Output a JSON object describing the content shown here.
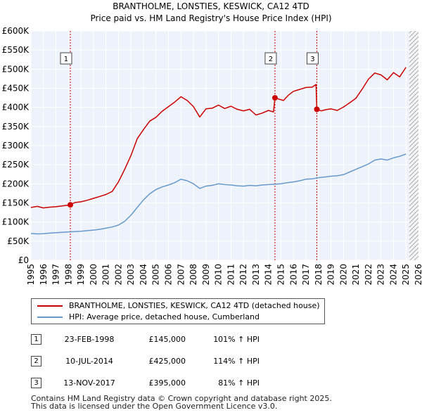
{
  "chart_data": {
    "type": "line",
    "title": "BRANTHOLME, LONSTIES, KESWICK, CA12 4TD",
    "subtitle": "Price paid vs. HM Land Registry's House Price Index (HPI)",
    "xlabel": "",
    "ylabel": "",
    "xlim": [
      1995,
      2026
    ],
    "ylim": [
      0,
      600000
    ],
    "x_ticks": [
      "1995",
      "1996",
      "1997",
      "1998",
      "1999",
      "2000",
      "2001",
      "2002",
      "2003",
      "2004",
      "2005",
      "2006",
      "2007",
      "2008",
      "2009",
      "2010",
      "2011",
      "2012",
      "2013",
      "2014",
      "2015",
      "2016",
      "2017",
      "2018",
      "2019",
      "2020",
      "2021",
      "2022",
      "2023",
      "2024",
      "2025",
      "2026"
    ],
    "y_ticks": [
      {
        "value": 0,
        "label": "£0"
      },
      {
        "value": 50000,
        "label": "£50K"
      },
      {
        "value": 100000,
        "label": "£100K"
      },
      {
        "value": 150000,
        "label": "£150K"
      },
      {
        "value": 200000,
        "label": "£200K"
      },
      {
        "value": 250000,
        "label": "£250K"
      },
      {
        "value": 300000,
        "label": "£300K"
      },
      {
        "value": 350000,
        "label": "£350K"
      },
      {
        "value": 400000,
        "label": "£400K"
      },
      {
        "value": 450000,
        "label": "£450K"
      },
      {
        "value": 500000,
        "label": "£500K"
      },
      {
        "value": 550000,
        "label": "£550K"
      },
      {
        "value": 600000,
        "label": "£600K"
      }
    ],
    "series": [
      {
        "name": "BRANTHOLME, LONSTIES, KESWICK, CA12 4TD (detached house)",
        "color": "#cc0000",
        "x": [
          1995.0,
          1995.5,
          1996.0,
          1996.5,
          1997.0,
          1997.5,
          1998.15,
          1998.5,
          1999.0,
          1999.5,
          2000.0,
          2000.5,
          2001.0,
          2001.5,
          2002.0,
          2002.5,
          2003.0,
          2003.5,
          2004.0,
          2004.5,
          2005.0,
          2005.5,
          2006.0,
          2006.5,
          2007.0,
          2007.5,
          2008.0,
          2008.5,
          2009.0,
          2009.5,
          2010.0,
          2010.5,
          2011.0,
          2011.5,
          2012.0,
          2012.5,
          2013.0,
          2013.5,
          2014.0,
          2014.4,
          2014.52,
          2014.8,
          2015.2,
          2015.6,
          2016.0,
          2016.5,
          2017.0,
          2017.5,
          2017.8,
          2017.87,
          2018.2,
          2018.6,
          2019.0,
          2019.5,
          2020.0,
          2020.5,
          2021.0,
          2021.5,
          2022.0,
          2022.5,
          2023.0,
          2023.5,
          2024.0,
          2024.5,
          2025.0
        ],
        "values": [
          138000,
          141000,
          137000,
          139000,
          140000,
          142000,
          145000,
          151000,
          153000,
          157000,
          162000,
          167000,
          172000,
          180000,
          205000,
          238000,
          274000,
          318000,
          342000,
          364000,
          374000,
          390000,
          402000,
          414000,
          428000,
          418000,
          402000,
          375000,
          396000,
          398000,
          406000,
          397000,
          403000,
          395000,
          391000,
          395000,
          380000,
          385000,
          392000,
          388000,
          425000,
          422000,
          418000,
          432000,
          442000,
          447000,
          452000,
          453000,
          460000,
          395000,
          391000,
          394000,
          396000,
          392000,
          401000,
          412000,
          424000,
          448000,
          474000,
          490000,
          485000,
          472000,
          491000,
          480000,
          505000
        ]
      },
      {
        "name": "HPI: Average price, detached house, Cumberland",
        "color": "#6699cc",
        "x": [
          1995.0,
          1995.5,
          1996.0,
          1996.5,
          1997.0,
          1997.5,
          1998.0,
          1998.5,
          1999.0,
          1999.5,
          2000.0,
          2000.5,
          2001.0,
          2001.5,
          2002.0,
          2002.5,
          2003.0,
          2003.5,
          2004.0,
          2004.5,
          2005.0,
          2005.5,
          2006.0,
          2006.5,
          2007.0,
          2007.5,
          2008.0,
          2008.5,
          2009.0,
          2009.5,
          2010.0,
          2010.5,
          2011.0,
          2011.5,
          2012.0,
          2012.5,
          2013.0,
          2013.5,
          2014.0,
          2014.5,
          2015.0,
          2015.5,
          2016.0,
          2016.5,
          2017.0,
          2017.5,
          2018.0,
          2018.5,
          2019.0,
          2019.5,
          2020.0,
          2020.5,
          2021.0,
          2021.5,
          2022.0,
          2022.5,
          2023.0,
          2023.5,
          2024.0,
          2024.5,
          2025.0
        ],
        "values": [
          70000,
          69000,
          69500,
          71000,
          72000,
          73000,
          74000,
          75000,
          76000,
          77500,
          79000,
          81000,
          84000,
          87000,
          92000,
          102000,
          118000,
          138000,
          158000,
          174000,
          185000,
          192000,
          197000,
          203000,
          212000,
          208000,
          200000,
          188000,
          194000,
          196000,
          200000,
          198000,
          197000,
          195000,
          194000,
          196000,
          195000,
          197000,
          198000,
          199000,
          200000,
          203000,
          205000,
          208000,
          212000,
          213000,
          216000,
          218000,
          220000,
          221000,
          224000,
          231000,
          238000,
          245000,
          252000,
          262000,
          265000,
          262000,
          268000,
          272000,
          278000
        ]
      }
    ],
    "sales": [
      {
        "id": "1",
        "date": "23-FEB-1998",
        "x": 1998.15,
        "price": 145000,
        "price_label": "£145,000",
        "hpi": "101% ↑ HPI"
      },
      {
        "id": "2",
        "date": "10-JUL-2014",
        "x": 2014.52,
        "price": 425000,
        "price_label": "£425,000",
        "hpi": "114% ↑ HPI"
      },
      {
        "id": "3",
        "date": "13-NOV-2017",
        "x": 2017.87,
        "price": 395000,
        "price_label": "£395,000",
        "hpi": "81% ↑ HPI"
      }
    ],
    "forecast_start": 2025.25,
    "colors": {
      "plot_bg": "#eef2fa",
      "grid": "#ffffff",
      "sale_marker": "#cc0000",
      "vline": "#cc0000",
      "hatch": "#9aa0aa"
    }
  },
  "legend": {
    "property_label": "BRANTHOLME, LONSTIES, KESWICK, CA12 4TD (detached house)",
    "hpi_label": "HPI: Average price, detached house, Cumberland"
  },
  "footer": {
    "line1": "Contains HM Land Registry data © Crown copyright and database right 2025.",
    "line2": "This data is licensed under the Open Government Licence v3.0."
  }
}
